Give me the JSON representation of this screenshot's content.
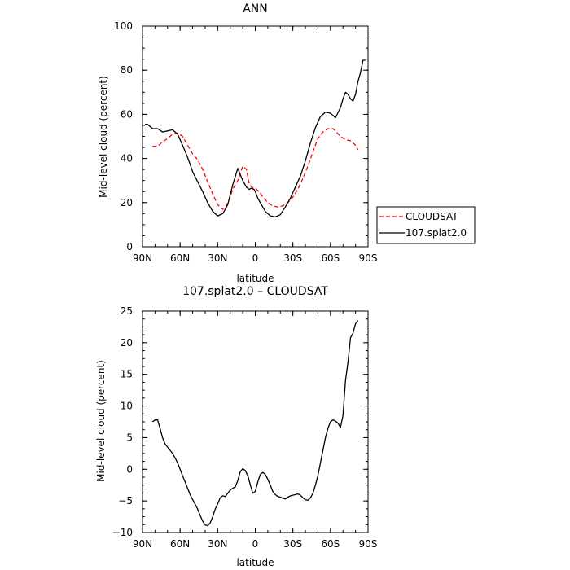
{
  "chart_data": [
    {
      "type": "line",
      "title": "ANN",
      "xlabel": "latitude",
      "ylabel": "Mid-level cloud (percent)",
      "xlim": [
        90,
        -90
      ],
      "ylim": [
        0,
        100
      ],
      "x_ticks": [
        90,
        60,
        30,
        0,
        -30,
        -60,
        -90
      ],
      "x_tick_labels": [
        "90N",
        "60N",
        "30N",
        "0",
        "30S",
        "60S",
        "90S"
      ],
      "y_ticks": [
        0,
        20,
        40,
        60,
        80,
        100
      ],
      "y_tick_labels": [
        "0",
        "20",
        "40",
        "60",
        "80",
        "100"
      ],
      "legend": {
        "placement": "right",
        "entries": [
          "CLOUDSAT",
          "107.splat2.0"
        ]
      },
      "series": [
        {
          "name": "CLOUDSAT",
          "color": "#ff0000",
          "style": "dashed",
          "x": [
            82,
            78,
            74,
            70,
            66,
            62,
            58,
            54,
            50,
            46,
            42,
            38,
            34,
            30,
            26,
            22,
            18,
            14,
            10,
            7,
            5,
            3,
            0,
            -3,
            -6,
            -10,
            -14,
            -18,
            -22,
            -26,
            -30,
            -34,
            -38,
            -42,
            -46,
            -50,
            -54,
            -58,
            -62,
            -64,
            -68,
            -72,
            -76,
            -80,
            -82
          ],
          "y": [
            45.5,
            45.5,
            47.5,
            49,
            51,
            51.5,
            50,
            46,
            42,
            39.5,
            35,
            29.5,
            24,
            19,
            17,
            19.5,
            26,
            30,
            36.5,
            35,
            29,
            27,
            26.5,
            25,
            22.5,
            20,
            18.5,
            18,
            18.5,
            20,
            22.5,
            26,
            31,
            36.5,
            43,
            49,
            52,
            53.5,
            53.5,
            52.5,
            50,
            48.5,
            48,
            46,
            44
          ]
        },
        {
          "name": "107.splat2.0",
          "color": "#000000",
          "style": "solid",
          "x": [
            88,
            86,
            82,
            78,
            74,
            70,
            66,
            62,
            58,
            54,
            50,
            46,
            42,
            38,
            34,
            30,
            26,
            22,
            18,
            14,
            10,
            7,
            5,
            3,
            1,
            0,
            -2,
            -5,
            -8,
            -12,
            -16,
            -20,
            -24,
            -28,
            -32,
            -36,
            -40,
            -44,
            -48,
            -52,
            -56,
            -60,
            -64,
            -68,
            -70,
            -72,
            -74,
            -76,
            -78,
            -80,
            -82,
            -84,
            -86,
            -88
          ],
          "y": [
            55.5,
            55.5,
            53.5,
            53.5,
            52,
            52.5,
            53,
            51,
            46,
            40.5,
            34,
            29.5,
            25,
            20,
            16,
            14,
            15,
            19,
            28,
            35.5,
            30,
            27,
            26,
            26.5,
            26,
            25,
            22,
            19,
            16,
            14,
            13.5,
            14.5,
            18,
            22,
            27,
            32,
            39,
            47,
            54,
            59,
            61,
            60.5,
            58.5,
            63,
            67,
            70,
            69,
            67,
            66,
            69,
            75,
            79,
            84.5,
            84.5
          ]
        }
      ]
    },
    {
      "type": "line",
      "title": "107.splat2.0 – CLOUDSAT",
      "xlabel": "latitude",
      "ylabel": "Mid-level cloud (percent)",
      "xlim": [
        90,
        -90
      ],
      "ylim": [
        -10,
        25
      ],
      "x_ticks": [
        90,
        60,
        30,
        0,
        -30,
        -60,
        -90
      ],
      "x_tick_labels": [
        "90N",
        "60N",
        "30N",
        "0",
        "30S",
        "60S",
        "90S"
      ],
      "y_ticks": [
        -10,
        -5,
        0,
        5,
        10,
        15,
        20,
        25
      ],
      "y_tick_labels": [
        "−10",
        "−5",
        "0",
        "5",
        "10",
        "15",
        "20",
        "25"
      ],
      "series": [
        {
          "color": "#000000",
          "style": "solid",
          "x": [
            82,
            80,
            78,
            76,
            74,
            72,
            70,
            68,
            66,
            64,
            62,
            60,
            58,
            56,
            54,
            52,
            50,
            48,
            46,
            44,
            42,
            40,
            38,
            36,
            34,
            32,
            30,
            28,
            26,
            24,
            22,
            20,
            18,
            16,
            14,
            12,
            10,
            8,
            6,
            4,
            2,
            0,
            -2,
            -4,
            -6,
            -8,
            -10,
            -12,
            -14,
            -16,
            -18,
            -20,
            -22,
            -24,
            -26,
            -28,
            -30,
            -32,
            -34,
            -36,
            -38,
            -40,
            -42,
            -44,
            -46,
            -48,
            -50,
            -52,
            -54,
            -56,
            -58,
            -60,
            -62,
            -64,
            -66,
            -68,
            -70,
            -72,
            -74,
            -76,
            -78,
            -80,
            -82
          ],
          "y": [
            7.5,
            7.8,
            7.8,
            6.5,
            5,
            4,
            3.5,
            3,
            2.5,
            1.8,
            1,
            0,
            -1,
            -2,
            -3,
            -4,
            -4.8,
            -5.5,
            -6.3,
            -7.3,
            -8.2,
            -8.8,
            -8.9,
            -8.5,
            -7.5,
            -6.3,
            -5.5,
            -4.5,
            -4.2,
            -4.3,
            -3.8,
            -3.3,
            -3,
            -2.8,
            -1.8,
            -0.4,
            0.1,
            -0.2,
            -1,
            -2.4,
            -3.8,
            -3.5,
            -2,
            -0.8,
            -0.5,
            -0.8,
            -1.6,
            -2.5,
            -3.5,
            -4,
            -4.3,
            -4.4,
            -4.6,
            -4.7,
            -4.4,
            -4.2,
            -4.1,
            -4,
            -3.9,
            -4.1,
            -4.5,
            -4.8,
            -4.9,
            -4.5,
            -3.8,
            -2.5,
            -1,
            1,
            3,
            5,
            6.5,
            7.5,
            7.8,
            7.6,
            7.3,
            6.6,
            8.5,
            14,
            17,
            20.8,
            21.5,
            23,
            23.5
          ]
        }
      ]
    }
  ]
}
